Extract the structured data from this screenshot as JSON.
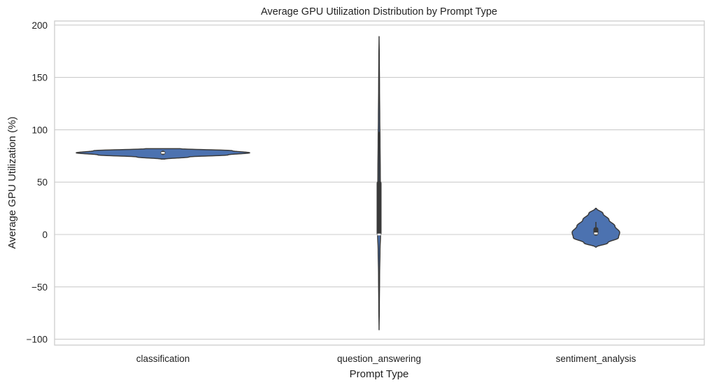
{
  "chart_data": {
    "type": "violin",
    "title": "Average GPU Utilization Distribution by Prompt Type",
    "xlabel": "Prompt Type",
    "ylabel": "Average GPU Utilization (%)",
    "categories": [
      "classification",
      "question_answering",
      "sentiment_analysis"
    ],
    "ylim": [
      -105,
      205
    ],
    "yticks": [
      -100,
      -50,
      0,
      50,
      100,
      150,
      200
    ],
    "ytick_labels": [
      "−100",
      "−50",
      "0",
      "50",
      "100",
      "150",
      "200"
    ],
    "grid": "horizontal",
    "fill_color": "#4c72b0",
    "edge_color": "#3a3a3a",
    "violins": [
      {
        "category": "classification",
        "profile": [
          [
            72,
            0.02
          ],
          [
            74,
            0.3
          ],
          [
            76,
            0.75
          ],
          [
            78,
            1.0
          ],
          [
            80,
            0.8
          ],
          [
            82,
            0.2
          ]
        ],
        "q1": 77,
        "median": 78,
        "q3": 79,
        "whisker_low": 76,
        "whisker_high": 80
      },
      {
        "category": "question_answering",
        "profile": [
          [
            -91,
            0.0
          ],
          [
            -70,
            0.06
          ],
          [
            -40,
            0.12
          ],
          [
            -15,
            0.22
          ],
          [
            0,
            0.35
          ],
          [
            30,
            0.35
          ],
          [
            60,
            0.28
          ],
          [
            90,
            0.22
          ],
          [
            110,
            0.16
          ],
          [
            140,
            0.1
          ],
          [
            170,
            0.05
          ],
          [
            189,
            0.0
          ]
        ],
        "q1": 0,
        "median": 0,
        "q3": 50,
        "whisker_low": 0,
        "whisker_high": 98
      },
      {
        "category": "sentiment_analysis",
        "profile": [
          [
            -12,
            0.02
          ],
          [
            -8,
            0.5
          ],
          [
            -3,
            0.95
          ],
          [
            2,
            1.0
          ],
          [
            8,
            0.8
          ],
          [
            14,
            0.55
          ],
          [
            20,
            0.3
          ],
          [
            25,
            0.02
          ]
        ],
        "q1": 0,
        "median": 1,
        "q3": 6,
        "whisker_low": 0,
        "whisker_high": 12
      }
    ]
  }
}
